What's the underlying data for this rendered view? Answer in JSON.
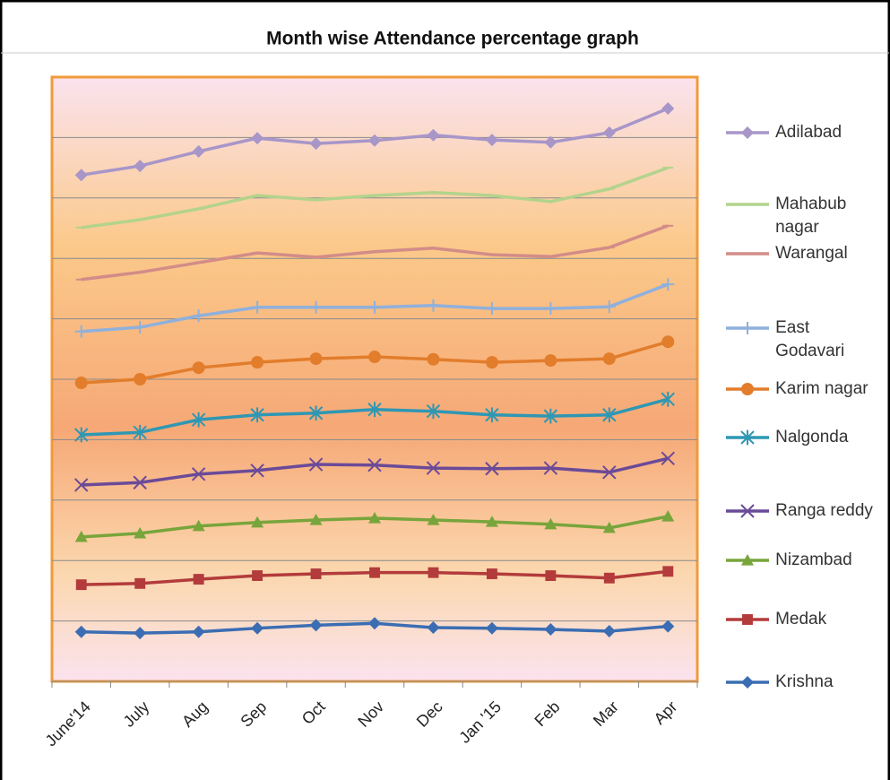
{
  "chart_data": {
    "type": "line",
    "title": "Month wise Attendance percentage graph",
    "categories": [
      "June'14",
      "July",
      "Aug",
      "Sep",
      "Oct",
      "Nov",
      "Dec",
      "Jan '15",
      "Feb",
      "Mar",
      "Apr"
    ],
    "ylim": [
      0,
      10
    ],
    "yticks": [
      1,
      2,
      3,
      4,
      5,
      6,
      7,
      8,
      9
    ],
    "grid": true,
    "series": [
      {
        "name": "Krishna",
        "color": "#3b6db3",
        "marker": "diamond",
        "values": [
          0.82,
          0.8,
          0.82,
          0.88,
          0.93,
          0.96,
          0.89,
          0.88,
          0.86,
          0.83,
          0.91
        ]
      },
      {
        "name": "Medak",
        "color": "#b33b3b",
        "marker": "square",
        "values": [
          1.6,
          1.62,
          1.69,
          1.75,
          1.78,
          1.8,
          1.8,
          1.78,
          1.75,
          1.71,
          1.82
        ]
      },
      {
        "name": "Nizambad",
        "color": "#78a53b",
        "marker": "triangle",
        "values": [
          2.39,
          2.45,
          2.57,
          2.63,
          2.67,
          2.7,
          2.67,
          2.64,
          2.6,
          2.54,
          2.73
        ]
      },
      {
        "name": "Ranga reddy",
        "color": "#6b4a98",
        "marker": "x",
        "values": [
          3.25,
          3.29,
          3.43,
          3.49,
          3.59,
          3.58,
          3.53,
          3.52,
          3.53,
          3.46,
          3.69
        ]
      },
      {
        "name": "Nalgonda",
        "color": "#2f97b3",
        "marker": "star",
        "values": [
          4.08,
          4.12,
          4.33,
          4.41,
          4.44,
          4.5,
          4.47,
          4.41,
          4.39,
          4.41,
          4.67
        ]
      },
      {
        "name": "Karim nagar",
        "color": "#e27d2c",
        "marker": "circle",
        "values": [
          4.94,
          5.0,
          5.19,
          5.28,
          5.34,
          5.37,
          5.33,
          5.28,
          5.31,
          5.34,
          5.62
        ]
      },
      {
        "name": "East Godavari",
        "color": "#8fb0dc",
        "marker": "plus",
        "values": [
          5.79,
          5.86,
          6.05,
          6.19,
          6.19,
          6.19,
          6.22,
          6.17,
          6.17,
          6.2,
          6.57
        ]
      },
      {
        "name": "Warangal",
        "color": "#d38c88",
        "marker": "dash",
        "values": [
          6.65,
          6.77,
          6.93,
          7.09,
          7.02,
          7.11,
          7.17,
          7.06,
          7.03,
          7.18,
          7.54
        ]
      },
      {
        "name": "Mahabub nagar",
        "color": "#b3d38c",
        "marker": "dash",
        "values": [
          7.51,
          7.64,
          7.82,
          8.04,
          7.97,
          8.04,
          8.09,
          8.04,
          7.94,
          8.15,
          8.5
        ]
      },
      {
        "name": "Adilabad",
        "color": "#a896c9",
        "marker": "diamond",
        "values": [
          8.38,
          8.53,
          8.77,
          8.99,
          8.9,
          8.95,
          9.04,
          8.96,
          8.92,
          9.08,
          9.48
        ]
      }
    ]
  }
}
